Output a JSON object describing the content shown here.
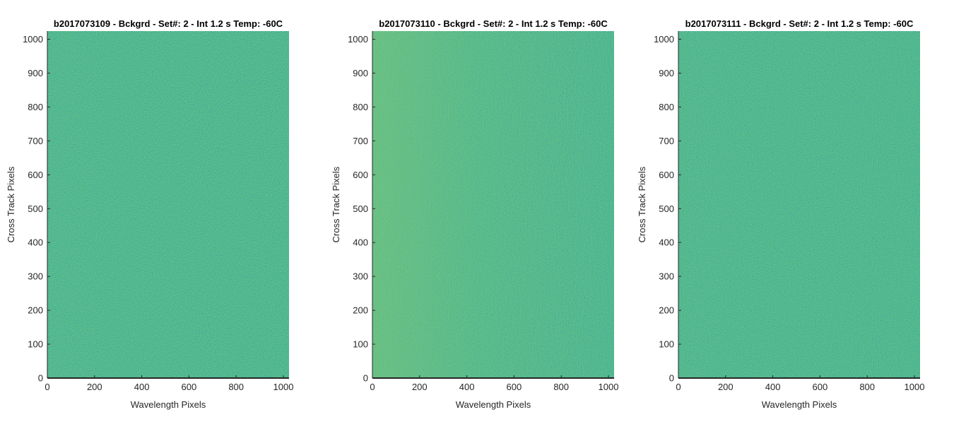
{
  "chart_data": [
    {
      "type": "heatmap",
      "title": "b2017073109 - Bckgrd - Set#: 2 - Int 1.2 s Temp: -60C",
      "xlabel": "Wavelength Pixels",
      "ylabel": "Cross Track Pixels",
      "xlim": [
        0,
        1024
      ],
      "ylim": [
        0,
        1024
      ],
      "xticks": [
        0,
        200,
        400,
        600,
        800,
        1000
      ],
      "yticks": [
        0,
        100,
        200,
        300,
        400,
        500,
        600,
        700,
        800,
        900,
        1000
      ],
      "grid": false,
      "colors": {
        "low": "#26a8a6",
        "high": "#7ec77a"
      },
      "structure": "noise"
    },
    {
      "type": "heatmap",
      "title": "b2017073110 - Bckgrd - Set#: 2 - Int 1.2 s Temp: -60C",
      "xlabel": "Wavelength Pixels",
      "ylabel": "Cross Track Pixels",
      "xlim": [
        0,
        1024
      ],
      "ylim": [
        0,
        1024
      ],
      "xticks": [
        0,
        200,
        400,
        600,
        800,
        1000
      ],
      "yticks": [
        0,
        100,
        200,
        300,
        400,
        500,
        600,
        700,
        800,
        900,
        1000
      ],
      "grid": false,
      "colors": {
        "low": "#26a8a6",
        "high": "#7ec77a"
      },
      "structure": "noise, brighter toward the left edge"
    },
    {
      "type": "heatmap",
      "title": "b2017073111 - Bckgrd - Set#: 2 - Int 1.2 s Temp: -60C",
      "xlabel": "Wavelength Pixels",
      "ylabel": "Cross Track Pixels",
      "xlim": [
        0,
        1024
      ],
      "ylim": [
        0,
        1024
      ],
      "xticks": [
        0,
        200,
        400,
        600,
        800,
        1000
      ],
      "yticks": [
        0,
        100,
        200,
        300,
        400,
        500,
        600,
        700,
        800,
        900,
        1000
      ],
      "grid": false,
      "colors": {
        "low": "#26a8a6",
        "high": "#7ec77a"
      },
      "structure": "noise"
    }
  ]
}
